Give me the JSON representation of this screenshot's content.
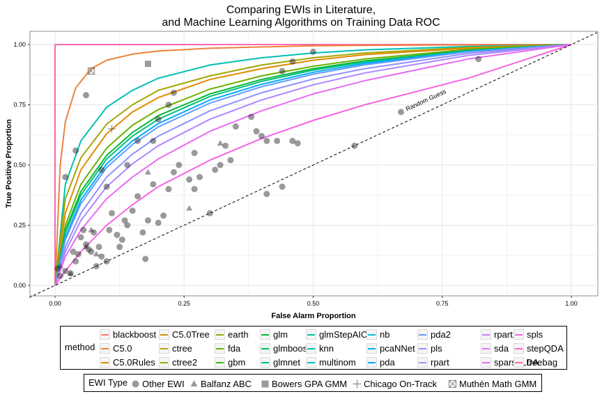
{
  "chart_data": {
    "type": "line",
    "title": "Comparing EWIs in Literature,",
    "subtitle": "and Machine Learning Algorithms on Training Data ROC",
    "xlabel": "False Alarm Proportion",
    "ylabel": "True Positive Proportion",
    "xlim": [
      -0.05,
      1.05
    ],
    "ylim": [
      -0.05,
      1.05
    ],
    "xticks": [
      "0.00",
      "0.25",
      "0.50",
      "0.75",
      "1.00"
    ],
    "yticks": [
      "0.00",
      "0.25",
      "0.50",
      "0.75",
      "1.00"
    ],
    "grid": true,
    "reference_line": {
      "label": "Random Guess",
      "x": [
        0,
        1
      ],
      "y": [
        0,
        1
      ]
    },
    "legend_method": {
      "title": "method",
      "placement": "bottom",
      "entries": [
        "blackboost",
        "C5.0",
        "C5.0Rules",
        "C5.0Tree",
        "ctree",
        "ctree2",
        "earth",
        "fda",
        "gbm",
        "glm",
        "glmboost",
        "glmnet",
        "glmStepAIC",
        "knn",
        "multinom",
        "nb",
        "pcaNNet",
        "pda",
        "pda2",
        "pls",
        "rpart",
        "rpart2",
        "sda",
        "sparseLDA",
        "spls",
        "stepQDA",
        "treebag"
      ],
      "colors": [
        "#F8766D",
        "#EC823C",
        "#E18A00",
        "#D19200",
        "#BE9C00",
        "#A3A500",
        "#8AAB00",
        "#6BB100",
        "#39B600",
        "#00BA38",
        "#00BD5C",
        "#00BF7D",
        "#00C19A",
        "#00BFB4",
        "#00BFC4",
        "#00BBDA",
        "#00B5EC",
        "#00A9FF",
        "#619CFF",
        "#8F91FF",
        "#AE87FF",
        "#C77CFF",
        "#DB72FB",
        "#E76BF3",
        "#F564E3",
        "#FC61D5",
        "#FF65AE"
      ]
    },
    "series": [
      {
        "name": "treebag",
        "color": "#FF65AE",
        "x": [
          0.0,
          0.0,
          1.0
        ],
        "y": [
          0.0,
          1.0,
          1.0
        ]
      },
      {
        "name": "C5.0",
        "color": "#EC823C",
        "x": [
          0.0,
          0.01,
          0.02,
          0.04,
          0.07,
          0.1,
          0.15,
          0.2,
          0.3,
          0.5,
          0.7,
          1.0
        ],
        "y": [
          0.0,
          0.5,
          0.68,
          0.82,
          0.9,
          0.935,
          0.96,
          0.973,
          0.985,
          0.995,
          0.998,
          1.0
        ]
      },
      {
        "name": "knn",
        "color": "#00BFB4",
        "x": [
          0.0,
          0.02,
          0.05,
          0.1,
          0.15,
          0.2,
          0.3,
          0.4,
          0.5,
          0.6,
          0.8,
          1.0
        ],
        "y": [
          0.0,
          0.42,
          0.6,
          0.74,
          0.81,
          0.86,
          0.915,
          0.945,
          0.965,
          0.978,
          0.992,
          1.0
        ]
      },
      {
        "name": "ctree2",
        "color": "#A3A500",
        "x": [
          0.0,
          0.02,
          0.05,
          0.1,
          0.15,
          0.2,
          0.3,
          0.4,
          0.5,
          0.6,
          0.8,
          1.0
        ],
        "y": [
          0.0,
          0.36,
          0.53,
          0.67,
          0.75,
          0.81,
          0.87,
          0.915,
          0.945,
          0.965,
          0.988,
          1.0
        ]
      },
      {
        "name": "C5.0Rules",
        "color": "#E18A00",
        "x": [
          0.0,
          0.02,
          0.05,
          0.1,
          0.15,
          0.2,
          0.3,
          0.4,
          0.5,
          0.6,
          0.8,
          1.0
        ],
        "y": [
          0.0,
          0.3,
          0.48,
          0.63,
          0.72,
          0.78,
          0.855,
          0.9,
          0.935,
          0.958,
          0.985,
          1.0
        ]
      },
      {
        "name": "gbm",
        "color": "#6BB100",
        "x": [
          0.0,
          0.02,
          0.05,
          0.1,
          0.15,
          0.2,
          0.3,
          0.4,
          0.5,
          0.6,
          0.8,
          1.0
        ],
        "y": [
          0.0,
          0.25,
          0.42,
          0.57,
          0.665,
          0.73,
          0.815,
          0.87,
          0.91,
          0.94,
          0.98,
          1.0
        ]
      },
      {
        "name": "glm",
        "color": "#00BA38",
        "x": [
          0.0,
          0.02,
          0.05,
          0.1,
          0.15,
          0.2,
          0.3,
          0.4,
          0.5,
          0.6,
          0.8,
          1.0
        ],
        "y": [
          0.0,
          0.23,
          0.39,
          0.54,
          0.635,
          0.705,
          0.795,
          0.855,
          0.9,
          0.932,
          0.976,
          1.0
        ]
      },
      {
        "name": "glmnet",
        "color": "#00BF7D",
        "x": [
          0.0,
          0.02,
          0.05,
          0.1,
          0.15,
          0.2,
          0.3,
          0.4,
          0.5,
          0.6,
          0.8,
          1.0
        ],
        "y": [
          0.0,
          0.22,
          0.375,
          0.525,
          0.62,
          0.69,
          0.785,
          0.847,
          0.894,
          0.928,
          0.975,
          1.0
        ]
      },
      {
        "name": "multinom",
        "color": "#00A9FF",
        "x": [
          0.0,
          0.02,
          0.05,
          0.1,
          0.15,
          0.2,
          0.3,
          0.4,
          0.5,
          0.6,
          0.8,
          1.0
        ],
        "y": [
          0.0,
          0.2,
          0.355,
          0.505,
          0.6,
          0.672,
          0.77,
          0.835,
          0.885,
          0.922,
          0.972,
          1.0
        ]
      },
      {
        "name": "pda2",
        "color": "#619CFF",
        "x": [
          0.0,
          0.02,
          0.05,
          0.1,
          0.15,
          0.2,
          0.3,
          0.4,
          0.5,
          0.6,
          0.8,
          1.0
        ],
        "y": [
          0.0,
          0.19,
          0.34,
          0.49,
          0.585,
          0.658,
          0.757,
          0.825,
          0.877,
          0.916,
          0.97,
          1.0
        ]
      },
      {
        "name": "pls",
        "color": "#8F91FF",
        "x": [
          0.0,
          0.02,
          0.05,
          0.1,
          0.15,
          0.2,
          0.3,
          0.4,
          0.5,
          0.6,
          0.8,
          1.0
        ],
        "y": [
          0.0,
          0.16,
          0.3,
          0.45,
          0.545,
          0.62,
          0.725,
          0.8,
          0.857,
          0.9,
          0.963,
          1.0
        ]
      },
      {
        "name": "rpart",
        "color": "#AE87FF",
        "x": [
          0.0,
          0.02,
          0.05,
          0.1,
          0.15,
          0.2,
          0.3,
          0.4,
          0.5,
          0.6,
          0.8,
          1.0
        ],
        "y": [
          0.0,
          0.14,
          0.27,
          0.41,
          0.505,
          0.58,
          0.69,
          0.77,
          0.833,
          0.882,
          0.955,
          1.0
        ]
      },
      {
        "name": "sparseLDA",
        "color": "#E76BF3",
        "x": [
          0.0,
          0.02,
          0.05,
          0.1,
          0.15,
          0.2,
          0.3,
          0.4,
          0.5,
          0.6,
          0.8,
          1.0
        ],
        "y": [
          0.0,
          0.12,
          0.23,
          0.36,
          0.45,
          0.525,
          0.64,
          0.725,
          0.795,
          0.85,
          0.94,
          1.0
        ]
      },
      {
        "name": "stepQDA",
        "color": "#F564E3",
        "x": [
          0.0,
          0.02,
          0.05,
          0.1,
          0.15,
          0.2,
          0.3,
          0.4,
          0.5,
          0.6,
          0.8,
          1.0
        ],
        "y": [
          0.0,
          0.06,
          0.14,
          0.25,
          0.335,
          0.41,
          0.52,
          0.61,
          0.685,
          0.75,
          0.86,
          1.0
        ]
      }
    ],
    "legend_type": {
      "title": "EWI Type",
      "entries": [
        "Other EWI",
        "Balfanz ABC",
        "Bowers GPA GMM",
        "Chicago On-Track",
        "Muthén Math GMM"
      ]
    },
    "points": {
      "Other EWI": [
        [
          0.005,
          0.07
        ],
        [
          0.01,
          0.04
        ],
        [
          0.02,
          0.06
        ],
        [
          0.03,
          0.05
        ],
        [
          0.035,
          0.14
        ],
        [
          0.04,
          0.1
        ],
        [
          0.045,
          0.13
        ],
        [
          0.05,
          0.2
        ],
        [
          0.055,
          0.23
        ],
        [
          0.06,
          0.17
        ],
        [
          0.065,
          0.15
        ],
        [
          0.07,
          0.14
        ],
        [
          0.075,
          0.22
        ],
        [
          0.08,
          0.08
        ],
        [
          0.085,
          0.16
        ],
        [
          0.09,
          0.12
        ],
        [
          0.1,
          0.1
        ],
        [
          0.105,
          0.23
        ],
        [
          0.11,
          0.3
        ],
        [
          0.12,
          0.21
        ],
        [
          0.125,
          0.16
        ],
        [
          0.13,
          0.19
        ],
        [
          0.135,
          0.27
        ],
        [
          0.14,
          0.25
        ],
        [
          0.15,
          0.31
        ],
        [
          0.16,
          0.37
        ],
        [
          0.17,
          0.22
        ],
        [
          0.175,
          0.11
        ],
        [
          0.18,
          0.27
        ],
        [
          0.2,
          0.26
        ],
        [
          0.21,
          0.29
        ],
        [
          0.22,
          0.4
        ],
        [
          0.23,
          0.47
        ],
        [
          0.24,
          0.5
        ],
        [
          0.26,
          0.44
        ],
        [
          0.27,
          0.4
        ],
        [
          0.28,
          0.45
        ],
        [
          0.3,
          0.3
        ],
        [
          0.31,
          0.48
        ],
        [
          0.32,
          0.5
        ],
        [
          0.33,
          0.58
        ],
        [
          0.34,
          0.52
        ],
        [
          0.35,
          0.66
        ],
        [
          0.38,
          0.7
        ],
        [
          0.39,
          0.64
        ],
        [
          0.4,
          0.62
        ],
        [
          0.41,
          0.6
        ],
        [
          0.43,
          0.6
        ],
        [
          0.46,
          0.6
        ],
        [
          0.47,
          0.59
        ],
        [
          0.41,
          0.38
        ],
        [
          0.44,
          0.41
        ],
        [
          0.58,
          0.58
        ],
        [
          0.67,
          0.72
        ],
        [
          0.82,
          0.94
        ],
        [
          0.44,
          0.89
        ],
        [
          0.46,
          0.93
        ],
        [
          0.5,
          0.97
        ],
        [
          0.23,
          0.8
        ],
        [
          0.06,
          0.79
        ],
        [
          0.04,
          0.56
        ],
        [
          0.02,
          0.45
        ],
        [
          0.09,
          0.48
        ],
        [
          0.1,
          0.41
        ],
        [
          0.14,
          0.5
        ],
        [
          0.19,
          0.42
        ],
        [
          0.27,
          0.55
        ],
        [
          0.16,
          0.6
        ],
        [
          0.19,
          0.6
        ],
        [
          0.2,
          0.69
        ],
        [
          0.22,
          0.75
        ]
      ],
      "Balfanz ABC": [
        [
          0.01,
          0.08
        ],
        [
          0.03,
          0.05
        ],
        [
          0.06,
          0.16
        ],
        [
          0.07,
          0.23
        ],
        [
          0.08,
          0.13
        ],
        [
          0.18,
          0.47
        ],
        [
          0.26,
          0.32
        ],
        [
          0.32,
          0.59
        ]
      ],
      "Bowers GPA GMM": [
        [
          0.18,
          0.92
        ]
      ],
      "Chicago On-Track": [
        [
          0.11,
          0.65
        ]
      ],
      "Muthén Math GMM": [
        [
          0.07,
          0.89
        ]
      ]
    }
  }
}
